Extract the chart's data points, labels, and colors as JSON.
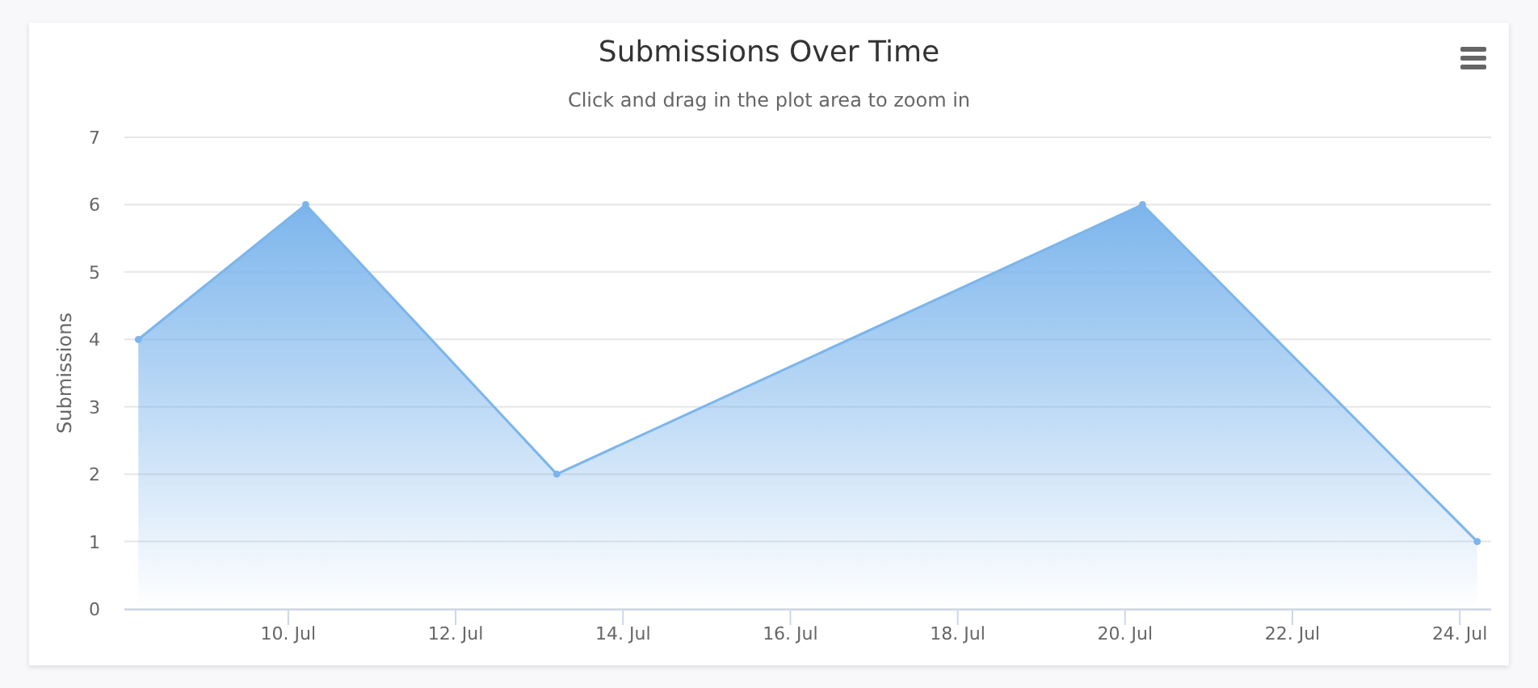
{
  "chart_data": {
    "type": "area",
    "title": "Submissions Over Time",
    "subtitle": "Click and drag in the plot area to zoom in",
    "ylabel": "Submissions",
    "x": [
      "--07-08T05:00",
      "--07-10T05:00",
      "--07-13T05:00",
      "--07-20T05:00",
      "--07-24T05:00"
    ],
    "series": [
      {
        "color": "#7cb5ec",
        "values": [
          4,
          6,
          2,
          6,
          1
        ]
      }
    ],
    "xlim": [
      "--07-08T01:00",
      "--07-24T09:00"
    ],
    "xticks": [
      {
        "value": "--07-10",
        "label": "10. Jul"
      },
      {
        "value": "--07-12",
        "label": "12. Jul"
      },
      {
        "value": "--07-14",
        "label": "14. Jul"
      },
      {
        "value": "--07-16",
        "label": "16. Jul"
      },
      {
        "value": "--07-18",
        "label": "18. Jul"
      },
      {
        "value": "--07-20",
        "label": "20. Jul"
      },
      {
        "value": "--07-22",
        "label": "22. Jul"
      },
      {
        "value": "--07-24",
        "label": "24. Jul"
      }
    ],
    "ylim": [
      0,
      7
    ],
    "yticks": [
      0,
      1,
      2,
      3,
      4,
      5,
      6,
      7
    ],
    "grid": "y",
    "marker": "circle"
  }
}
